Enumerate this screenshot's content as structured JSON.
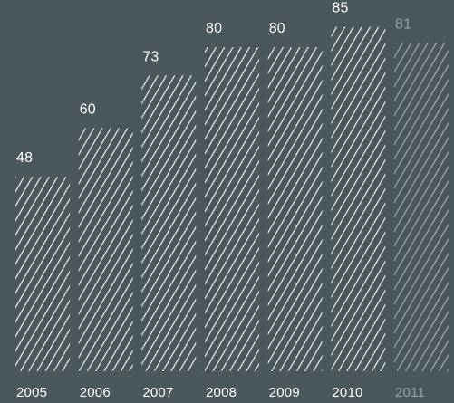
{
  "chart_data": {
    "type": "bar",
    "categories": [
      "2005",
      "2006",
      "2007",
      "2008",
      "2009",
      "2010",
      "2011"
    ],
    "values": [
      48,
      60,
      73,
      80,
      80,
      85,
      81
    ],
    "muted_categories": [
      "2011"
    ],
    "title": "",
    "xlabel": "",
    "ylabel": "",
    "ylim": [
      0,
      100
    ],
    "grid": false,
    "legend": "none",
    "data_labels": true,
    "bar_fill": "diagonal-hatch",
    "colors": {
      "background": "#4a575d",
      "bar_hatch": "#ffffff",
      "label": "#ffffff",
      "muted_hatch": "#a9b0b3",
      "muted_label": "#9aa3a7"
    }
  }
}
